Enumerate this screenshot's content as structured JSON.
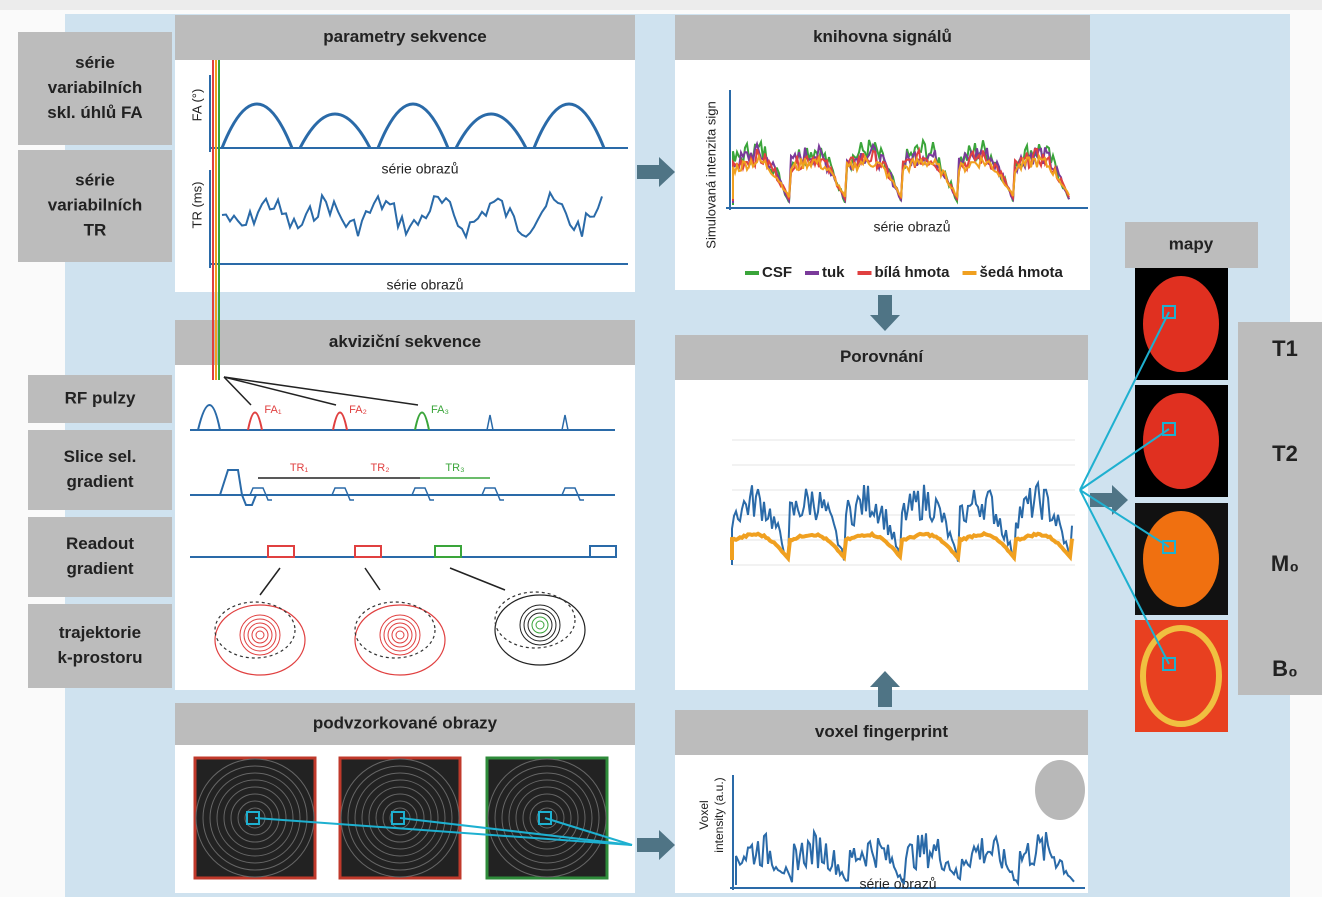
{
  "side_labels": [
    {
      "lines": [
        "série",
        "variabilních",
        "skl. úhlů FA"
      ]
    },
    {
      "lines": [
        "série",
        "variabilních",
        "TR"
      ]
    },
    {
      "lines": [
        "RF pulzy"
      ]
    },
    {
      "lines": [
        "Slice sel.",
        "gradient"
      ]
    },
    {
      "lines": [
        "Readout",
        "gradient"
      ]
    },
    {
      "lines": [
        "trajektorie",
        "k-prostoru"
      ]
    }
  ],
  "sequence_parameters": {
    "title": "parametry sekvence",
    "fa_axis": "FA (°)",
    "fa_x_axis": "série obrazů",
    "tr_axis": "TR (ms)",
    "tr_x_axis": "série obrazů"
  },
  "signal_library": {
    "title": "knihovna signálů",
    "y_axis": "Simulovaná intenzita sign",
    "x_axis": "série obrazů",
    "legend": [
      {
        "name": "CSF",
        "color": "#3aa53a"
      },
      {
        "name": "tuk",
        "color": "#7a3a9a"
      },
      {
        "name": "bílá hmota",
        "color": "#e04040"
      },
      {
        "name": "šedá hmota",
        "color": "#f0a020"
      }
    ]
  },
  "acquisition_sequence": {
    "title": "akviziční sekvence",
    "flip_angles": [
      "FA₁",
      "FA₂",
      "FA₃"
    ],
    "repetition_times": [
      "TR₁",
      "TR₂",
      "TR₃"
    ]
  },
  "comparison": {
    "title": "Porovnání"
  },
  "undersampled_images": {
    "title": "podvzorkované obrazy"
  },
  "voxel_fingerprint": {
    "title": "voxel fingerprint",
    "y_axis": [
      "Voxel",
      "intensity (a.u.)"
    ],
    "x_axis": "série obrazů"
  },
  "maps": {
    "title": "mapy",
    "labels": [
      "T1",
      "T2",
      "M₀",
      "B₀"
    ]
  }
}
